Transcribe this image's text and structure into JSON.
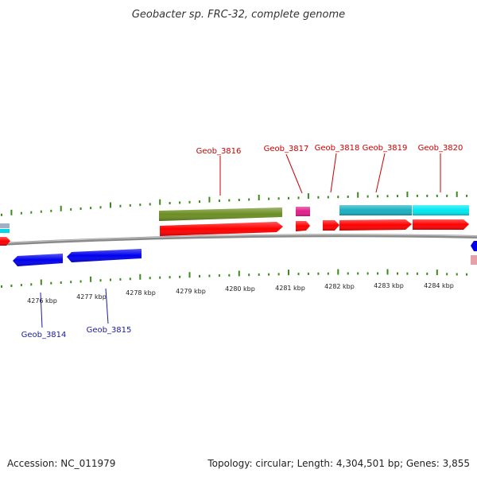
{
  "title": "Geobacter sp. FRC-32, complete genome",
  "footer": {
    "accession": "Accession: NC_011979",
    "summary": "Topology: circular; Length: 4,304,501 bp; Genes: 3,855"
  },
  "colors": {
    "backbone": "#8a8a8a",
    "tick": "#3a8a1a",
    "label_top": "#cc0000",
    "label_bottom": "#1a1aaa",
    "forward_cds": "#ff0000",
    "reverse_cds": "#0000ee",
    "olive": "#6b8e23",
    "magenta": "#e0208a",
    "teal": "#1ab0c0",
    "cyan": "#00e8f0",
    "grey_blue": "#a0b0c8",
    "pink": "#e8a0a8"
  },
  "ticks": [
    {
      "label": "4276 kbp"
    },
    {
      "label": "4277 kbp"
    },
    {
      "label": "4278 kbp"
    },
    {
      "label": "4279 kbp"
    },
    {
      "label": "4280 kbp"
    },
    {
      "label": "4281 kbp"
    },
    {
      "label": "4282 kbp"
    },
    {
      "label": "4283 kbp"
    },
    {
      "label": "4284 kbp"
    }
  ],
  "genes_top": [
    {
      "label": "Geob_3816"
    },
    {
      "label": "Geob_3817"
    },
    {
      "label": "Geob_3818"
    },
    {
      "label": "Geob_3819"
    },
    {
      "label": "Geob_3820"
    }
  ],
  "genes_bottom": [
    {
      "label": "Geob_3814"
    },
    {
      "label": "Geob_3815"
    }
  ]
}
